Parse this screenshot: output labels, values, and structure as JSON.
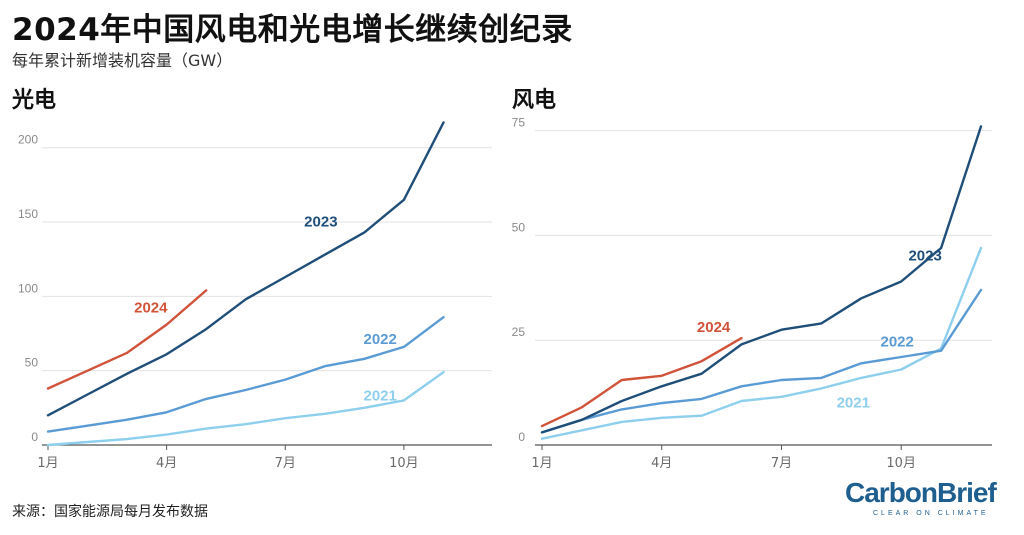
{
  "title": "2024年中国风电和光电增长继续创纪录",
  "subtitle": "每年累计新增装机容量（GW）",
  "source": "来源：国家能源局每月发布数据",
  "logo": {
    "text": "CarbonBrief",
    "tagline": "CLEAR ON CLIMATE"
  },
  "colors": {
    "2021": "#8ecfee",
    "2022": "#5b9bd5",
    "2023": "#1f4e79",
    "2024": "#d0533a"
  },
  "chart_data": [
    {
      "type": "line",
      "panel_title": "光电",
      "x": [
        1,
        2,
        3,
        4,
        5,
        6,
        7,
        8,
        9,
        10,
        11,
        12
      ],
      "xticks": [
        1,
        4,
        7,
        10
      ],
      "xtick_labels": [
        "1月",
        "4月",
        "7月",
        "10月"
      ],
      "ylim": [
        0,
        220
      ],
      "yticks": [
        0,
        50,
        100,
        150,
        200
      ],
      "grid": true,
      "series": [
        {
          "name": "2021",
          "values": [
            0,
            2,
            4,
            7,
            11,
            14,
            18,
            21,
            25,
            30,
            49,
            null
          ],
          "label_at": 9.4,
          "label_y": 30
        },
        {
          "name": "2022",
          "values": [
            9,
            13,
            17,
            22,
            31,
            37,
            44,
            53,
            58,
            66,
            86,
            null
          ],
          "label_at": 9.4,
          "label_y": 68
        },
        {
          "name": "2023",
          "values": [
            20,
            34,
            48,
            61,
            78,
            98,
            113,
            128,
            143,
            165,
            217,
            null
          ],
          "label_at": 7.9,
          "label_y": 147
        },
        {
          "name": "2024",
          "values": [
            38,
            50,
            62,
            81,
            104,
            null,
            null,
            null,
            null,
            null,
            null,
            null
          ],
          "label_at": 3.6,
          "label_y": 89
        }
      ]
    },
    {
      "type": "line",
      "panel_title": "风电",
      "x": [
        1,
        2,
        3,
        4,
        5,
        6,
        7,
        8,
        9,
        10,
        11,
        12
      ],
      "xticks": [
        1,
        4,
        7,
        10
      ],
      "xtick_labels": [
        "1月",
        "4月",
        "7月",
        "10月"
      ],
      "ylim": [
        0,
        78
      ],
      "yticks": [
        0,
        25,
        50,
        75
      ],
      "grid": true,
      "series": [
        {
          "name": "2021",
          "values": [
            1.5,
            3.5,
            5.5,
            6.5,
            7,
            10.5,
            11.5,
            13.5,
            16,
            18,
            23,
            47
          ],
          "label_at": 8.8,
          "label_y": 9
        },
        {
          "name": "2022",
          "values": [
            3,
            6,
            8.5,
            10,
            11,
            14,
            15.5,
            16,
            19.5,
            21,
            22.5,
            37
          ],
          "label_at": 9.9,
          "label_y": 23.5
        },
        {
          "name": "2023",
          "values": [
            3,
            6,
            10.5,
            14,
            17,
            24,
            27.5,
            29,
            35,
            39,
            47,
            76
          ],
          "label_at": 10.6,
          "label_y": 44
        },
        {
          "name": "2024",
          "values": [
            4.5,
            9,
            15.5,
            16.5,
            20,
            25.5,
            null,
            null,
            null,
            null,
            null,
            null
          ],
          "label_at": 5.3,
          "label_y": 27
        }
      ]
    }
  ]
}
